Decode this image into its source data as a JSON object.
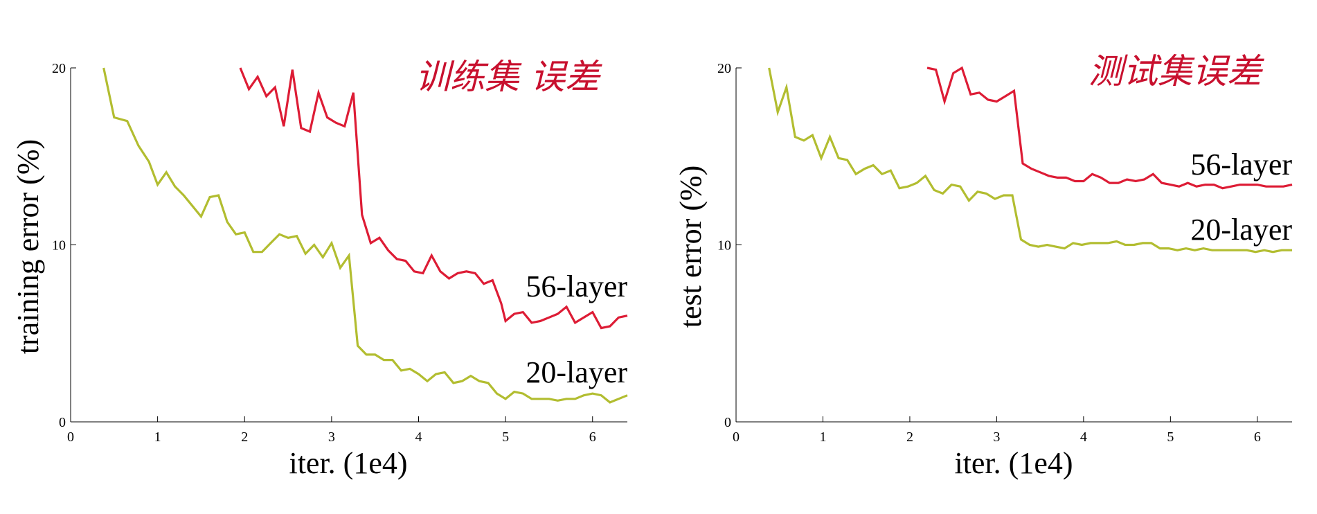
{
  "colors": {
    "red_series": "#dd1c35",
    "green_series": "#b2bd30",
    "annotation": "#c8102e",
    "axis": "#000000"
  },
  "chart_data": [
    {
      "type": "line",
      "ylabel": "training error (%)",
      "xlabel": "iter. (1e4)",
      "annotation": "训练集 误差",
      "xlim": [
        0,
        6.4
      ],
      "ylim": [
        0,
        20
      ],
      "xticks": [
        "0",
        "1",
        "2",
        "3",
        "4",
        "5",
        "6"
      ],
      "yticks": [
        "0",
        "10",
        "20"
      ],
      "grid": false,
      "series": [
        {
          "name": "56-layer",
          "x": [
            1.95,
            2.05,
            2.15,
            2.25,
            2.35,
            2.45,
            2.55,
            2.65,
            2.75,
            2.85,
            2.95,
            3.05,
            3.15,
            3.25,
            3.35,
            3.45,
            3.55,
            3.65,
            3.75,
            3.85,
            3.95,
            4.05,
            4.15,
            4.25,
            4.35,
            4.45,
            4.55,
            4.65,
            4.75,
            4.85,
            4.95,
            5.0,
            5.1,
            5.2,
            5.3,
            5.4,
            5.5,
            5.6,
            5.7,
            5.8,
            5.9,
            6.0,
            6.1,
            6.2,
            6.3,
            6.4
          ],
          "y": [
            20.0,
            18.8,
            19.5,
            18.4,
            18.9,
            16.7,
            19.9,
            16.6,
            16.4,
            18.6,
            17.2,
            16.9,
            16.7,
            18.6,
            11.7,
            10.1,
            10.4,
            9.7,
            9.2,
            9.1,
            8.5,
            8.4,
            9.4,
            8.5,
            8.1,
            8.4,
            8.5,
            8.4,
            7.8,
            8.0,
            6.7,
            5.7,
            6.1,
            6.2,
            5.6,
            5.7,
            5.9,
            6.1,
            6.5,
            5.6,
            5.9,
            6.2,
            5.3,
            5.4,
            5.9,
            6.0
          ]
        },
        {
          "name": "20-layer",
          "x": [
            0.38,
            0.5,
            0.65,
            0.78,
            0.9,
            1.0,
            1.1,
            1.2,
            1.3,
            1.4,
            1.5,
            1.6,
            1.7,
            1.8,
            1.9,
            2.0,
            2.1,
            2.2,
            2.3,
            2.4,
            2.5,
            2.6,
            2.7,
            2.8,
            2.9,
            3.0,
            3.1,
            3.2,
            3.3,
            3.4,
            3.5,
            3.6,
            3.7,
            3.8,
            3.9,
            4.0,
            4.1,
            4.2,
            4.3,
            4.4,
            4.5,
            4.6,
            4.7,
            4.8,
            4.9,
            5.0,
            5.1,
            5.2,
            5.3,
            5.4,
            5.5,
            5.6,
            5.7,
            5.8,
            5.9,
            6.0,
            6.1,
            6.2,
            6.3,
            6.4
          ],
          "y": [
            20.0,
            17.2,
            17.0,
            15.6,
            14.7,
            13.4,
            14.1,
            13.3,
            12.8,
            12.2,
            11.6,
            12.7,
            12.8,
            11.3,
            10.6,
            10.7,
            9.6,
            9.6,
            10.1,
            10.6,
            10.4,
            10.5,
            9.5,
            10.0,
            9.3,
            10.1,
            8.7,
            9.4,
            4.3,
            3.8,
            3.8,
            3.5,
            3.5,
            2.9,
            3.0,
            2.7,
            2.3,
            2.7,
            2.8,
            2.2,
            2.3,
            2.6,
            2.3,
            2.2,
            1.6,
            1.3,
            1.7,
            1.6,
            1.3,
            1.3,
            1.3,
            1.2,
            1.3,
            1.3,
            1.5,
            1.6,
            1.5,
            1.1,
            1.3,
            1.5
          ]
        }
      ]
    },
    {
      "type": "line",
      "ylabel": "test error (%)",
      "xlabel": "iter. (1e4)",
      "annotation": "测试集误差",
      "xlim": [
        0,
        6.4
      ],
      "ylim": [
        0,
        20
      ],
      "xticks": [
        "0",
        "1",
        "2",
        "3",
        "4",
        "5",
        "6"
      ],
      "yticks": [
        "0",
        "10",
        "20"
      ],
      "grid": false,
      "series": [
        {
          "name": "56-layer",
          "x": [
            2.2,
            2.3,
            2.4,
            2.5,
            2.6,
            2.7,
            2.8,
            2.9,
            3.0,
            3.1,
            3.2,
            3.3,
            3.4,
            3.5,
            3.6,
            3.7,
            3.8,
            3.9,
            4.0,
            4.1,
            4.2,
            4.3,
            4.4,
            4.5,
            4.6,
            4.7,
            4.8,
            4.9,
            5.0,
            5.1,
            5.2,
            5.3,
            5.4,
            5.5,
            5.6,
            5.7,
            5.8,
            5.9,
            6.0,
            6.1,
            6.2,
            6.3,
            6.4
          ],
          "y": [
            20.0,
            19.9,
            18.1,
            19.7,
            20.0,
            18.5,
            18.6,
            18.2,
            18.1,
            18.4,
            18.7,
            14.6,
            14.3,
            14.1,
            13.9,
            13.8,
            13.8,
            13.6,
            13.6,
            14.0,
            13.8,
            13.5,
            13.5,
            13.7,
            13.6,
            13.7,
            14.0,
            13.5,
            13.4,
            13.3,
            13.5,
            13.3,
            13.4,
            13.4,
            13.2,
            13.3,
            13.4,
            13.4,
            13.4,
            13.3,
            13.3,
            13.3,
            13.4
          ]
        },
        {
          "name": "20-layer",
          "x": [
            0.38,
            0.48,
            0.58,
            0.68,
            0.78,
            0.88,
            0.98,
            1.08,
            1.18,
            1.28,
            1.38,
            1.48,
            1.58,
            1.68,
            1.78,
            1.88,
            1.98,
            2.08,
            2.18,
            2.28,
            2.38,
            2.48,
            2.58,
            2.68,
            2.78,
            2.88,
            2.98,
            3.08,
            3.18,
            3.28,
            3.38,
            3.48,
            3.58,
            3.68,
            3.78,
            3.88,
            3.98,
            4.08,
            4.18,
            4.28,
            4.38,
            4.48,
            4.58,
            4.68,
            4.78,
            4.88,
            4.98,
            5.08,
            5.18,
            5.28,
            5.38,
            5.48,
            5.58,
            5.68,
            5.78,
            5.88,
            5.98,
            6.08,
            6.18,
            6.28,
            6.4
          ],
          "y": [
            20.0,
            17.5,
            18.9,
            16.1,
            15.9,
            16.2,
            14.9,
            16.1,
            14.9,
            14.8,
            14.0,
            14.3,
            14.5,
            14.0,
            14.2,
            13.2,
            13.3,
            13.5,
            13.9,
            13.1,
            12.9,
            13.4,
            13.3,
            12.5,
            13.0,
            12.9,
            12.6,
            12.8,
            12.8,
            10.3,
            10.0,
            9.9,
            10.0,
            9.9,
            9.8,
            10.1,
            10.0,
            10.1,
            10.1,
            10.1,
            10.2,
            10.0,
            10.0,
            10.1,
            10.1,
            9.8,
            9.8,
            9.7,
            9.8,
            9.7,
            9.8,
            9.7,
            9.7,
            9.7,
            9.7,
            9.7,
            9.6,
            9.7,
            9.6,
            9.7,
            9.7
          ]
        }
      ]
    }
  ]
}
